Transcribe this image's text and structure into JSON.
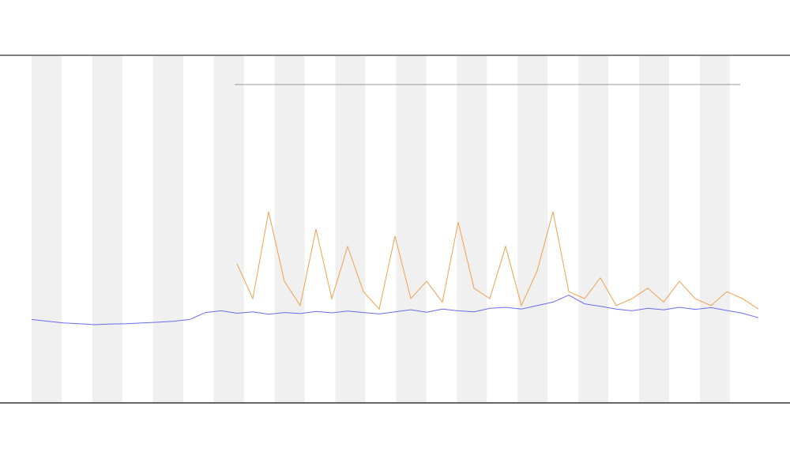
{
  "chart_data": {
    "type": "line",
    "x": [
      0,
      1,
      2,
      3,
      4,
      5,
      6,
      7,
      8,
      9,
      10,
      11,
      12,
      13,
      14,
      15,
      16,
      17,
      18,
      19,
      20,
      21,
      22,
      23,
      24,
      25,
      26,
      27,
      28,
      29,
      30,
      31,
      32,
      33,
      34,
      35,
      36,
      37,
      38,
      39,
      40,
      41,
      42,
      43,
      44,
      45,
      46
    ],
    "xlim": [
      0,
      46
    ],
    "ylim": [
      0,
      100
    ],
    "series": [
      {
        "color": "#6b6bf0",
        "values": [
          24,
          23.5,
          23,
          22.8,
          22.5,
          22.7,
          22.8,
          23,
          23.2,
          23.5,
          24,
          26,
          26.5,
          25.8,
          26.2,
          25.5,
          26,
          25.7,
          26.3,
          25.9,
          26.4,
          26,
          25.6,
          26.2,
          26.8,
          26.1,
          27,
          26.5,
          26.2,
          27.2,
          27.5,
          27,
          28,
          29,
          31,
          28.5,
          27.8,
          27,
          26.5,
          27.2,
          26.8,
          27.5,
          26.9,
          27.4,
          26.6,
          25.8,
          24.5
        ]
      },
      {
        "color": "#f0a050",
        "values": [
          null,
          null,
          null,
          null,
          null,
          null,
          null,
          null,
          null,
          null,
          null,
          null,
          null,
          40,
          30,
          55,
          35,
          28,
          50,
          30,
          45,
          32,
          27,
          48,
          30,
          35,
          29,
          52,
          33,
          30,
          45,
          28,
          38,
          55,
          32,
          30,
          36,
          28,
          30,
          33,
          29,
          35,
          30,
          28,
          32,
          30,
          27
        ]
      }
    ]
  }
}
